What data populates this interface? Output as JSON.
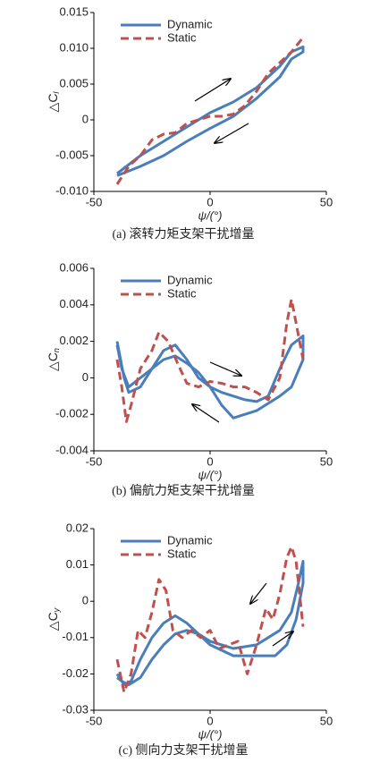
{
  "chart_data": [
    {
      "type": "line",
      "caption": "(a) 滚转力矩支架干扰增量",
      "xlabel": "ψ/(°)",
      "ylabel": "△C",
      "ylabel_subscript": "l",
      "xlim": [
        -50,
        50
      ],
      "xticks": [
        -50,
        0,
        50
      ],
      "ylim": [
        -0.01,
        0.015
      ],
      "yticks": [
        {
          "value": -0.01,
          "label": "-0.010"
        },
        -0.005,
        0,
        0.005,
        {
          "value": 0.01,
          "label": "0.010"
        },
        0.015
      ],
      "series": [
        {
          "name": "Dynamic",
          "color": "#4a7ebb",
          "style": "solid",
          "x": [
            -40,
            -30,
            -20,
            -10,
            0,
            10,
            20,
            30,
            35,
            40,
            40,
            35,
            30,
            20,
            10,
            0,
            -10,
            -20,
            -30,
            -40
          ],
          "values": [
            -0.0075,
            -0.005,
            -0.003,
            -0.001,
            0.001,
            0.0025,
            0.0045,
            0.0075,
            0.0095,
            0.0102,
            0.0095,
            0.0085,
            0.006,
            0.003,
            0.0005,
            -0.0012,
            -0.003,
            -0.005,
            -0.0065,
            -0.0078
          ]
        },
        {
          "name": "Static",
          "color": "#c0504d",
          "style": "dashed",
          "x": [
            -40,
            -35,
            -30,
            -25,
            -20,
            -15,
            -10,
            -5,
            0,
            5,
            10,
            15,
            20,
            25,
            30,
            35,
            40
          ],
          "values": [
            -0.009,
            -0.0065,
            -0.005,
            -0.0028,
            -0.002,
            -0.0018,
            -0.0005,
            0,
            0.0005,
            0.0005,
            0.0008,
            0.002,
            0.004,
            0.0065,
            0.008,
            0.0095,
            0.0115
          ]
        }
      ]
    },
    {
      "type": "line",
      "caption": "(b) 偏航力矩支架干扰增量",
      "xlabel": "ψ/(°)",
      "ylabel": "△C",
      "ylabel_subscript": "n",
      "xlim": [
        -50,
        50
      ],
      "xticks": [
        -50,
        0,
        50
      ],
      "ylim": [
        -0.004,
        0.006
      ],
      "yticks": [
        -0.004,
        -0.002,
        0,
        0.002,
        0.004,
        0.006
      ],
      "series": [
        {
          "name": "Dynamic",
          "color": "#4a7ebb",
          "style": "solid",
          "x": [
            -40,
            -37,
            -35,
            -30,
            -25,
            -20,
            -15,
            -10,
            -5,
            0,
            5,
            10,
            15,
            20,
            25,
            30,
            35,
            40,
            40,
            35,
            30,
            20,
            10,
            5,
            0,
            -5,
            -10,
            -15,
            -20,
            -25,
            -30,
            -35,
            -38,
            -40
          ],
          "values": [
            0.002,
            0,
            -0.0008,
            -0.0005,
            0.0005,
            0.0015,
            0.0018,
            0.001,
            0,
            -0.0005,
            -0.0008,
            -0.001,
            -0.0012,
            -0.0013,
            -0.001,
            0.0005,
            0.0018,
            0.0023,
            0.001,
            -0.0005,
            -0.001,
            -0.0018,
            -0.0022,
            -0.0015,
            -0.0005,
            0.0003,
            0.0008,
            0.0012,
            0.001,
            0.0005,
            0,
            -0.0005,
            0.0005,
            0.0018
          ]
        },
        {
          "name": "Static",
          "color": "#c0504d",
          "style": "dashed",
          "x": [
            -40,
            -38,
            -36,
            -34,
            -30,
            -25,
            -22,
            -18,
            -14,
            -10,
            -5,
            0,
            5,
            10,
            15,
            20,
            25,
            30,
            33,
            35,
            37,
            40
          ],
          "values": [
            0.001,
            -0.0005,
            -0.0024,
            -0.0015,
            0.0005,
            0.0015,
            0.0025,
            0.002,
            0.0008,
            -0.0003,
            -0.0005,
            -0.0002,
            -0.0003,
            -0.0005,
            -0.0005,
            -0.0008,
            -0.0012,
            0,
            0.003,
            0.0043,
            0.003,
            0.001
          ]
        }
      ]
    },
    {
      "type": "line",
      "caption": "(c) 侧向力支架干扰增量",
      "xlabel": "ψ/(°)",
      "ylabel": "△C",
      "ylabel_subscript": "y",
      "xlim": [
        -50,
        50
      ],
      "xticks": [
        -50,
        0,
        50
      ],
      "ylim": [
        -0.03,
        0.02
      ],
      "yticks": [
        -0.03,
        -0.02,
        -0.01,
        0,
        0.01,
        0.02
      ],
      "series": [
        {
          "name": "Dynamic",
          "color": "#4a7ebb",
          "style": "solid",
          "x": [
            -40,
            -37,
            -34,
            -30,
            -25,
            -20,
            -15,
            -10,
            -5,
            0,
            10,
            20,
            30,
            35,
            38,
            40,
            40,
            37,
            33,
            28,
            20,
            10,
            0,
            -5,
            -10,
            -15,
            -20,
            -25,
            -30,
            -35,
            -38,
            -40
          ],
          "values": [
            -0.02,
            -0.023,
            -0.022,
            -0.016,
            -0.01,
            -0.006,
            -0.004,
            -0.006,
            -0.009,
            -0.011,
            -0.013,
            -0.012,
            -0.008,
            -0.003,
            0.005,
            0.011,
            0.005,
            -0.005,
            -0.012,
            -0.015,
            -0.015,
            -0.015,
            -0.012,
            -0.009,
            -0.008,
            -0.009,
            -0.012,
            -0.016,
            -0.021,
            -0.023,
            -0.022,
            -0.021
          ]
        },
        {
          "name": "Static",
          "color": "#c0504d",
          "style": "dashed",
          "x": [
            -40,
            -37,
            -34,
            -31,
            -28,
            -25,
            -22,
            -19,
            -16,
            -12,
            -8,
            -4,
            0,
            4,
            8,
            12,
            16,
            20,
            24,
            27,
            30,
            33,
            35,
            37,
            40
          ],
          "values": [
            -0.016,
            -0.025,
            -0.02,
            -0.008,
            -0.01,
            -0.003,
            0.006,
            0.003,
            -0.008,
            -0.01,
            -0.008,
            -0.01,
            -0.008,
            -0.013,
            -0.012,
            -0.011,
            -0.02,
            -0.012,
            -0.002,
            -0.005,
            0.002,
            0.012,
            0.015,
            0.011,
            -0.007
          ]
        }
      ]
    }
  ]
}
